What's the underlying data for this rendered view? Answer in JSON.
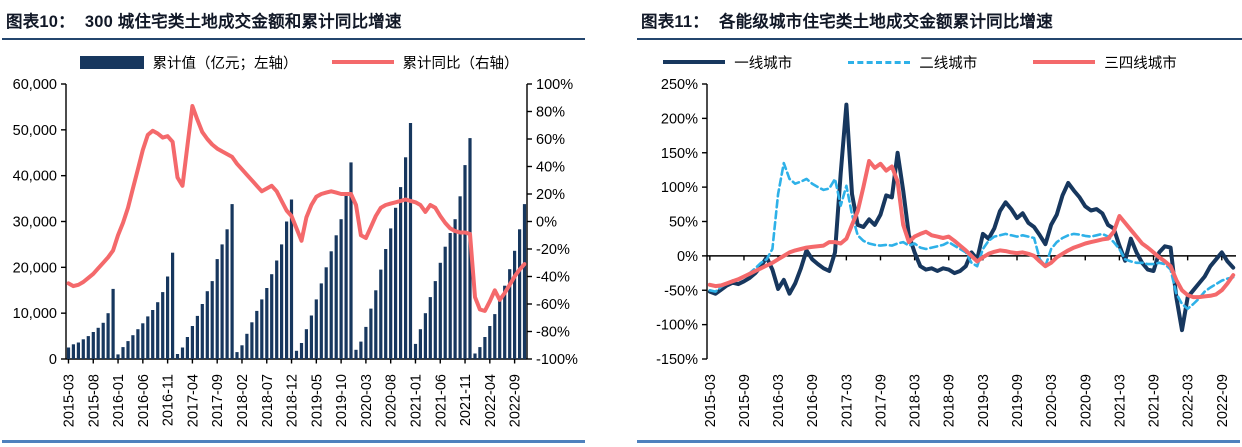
{
  "figures": [
    {
      "title_label": "图表10：",
      "title": "300 城住宅类土地成交金额和累计同比增速"
    },
    {
      "title_label": "图表11：",
      "title": "各能级城市住宅类土地成交金额累计同比增速"
    }
  ],
  "colors": {
    "navy": "#17375e",
    "salmon": "#f4696b",
    "lightblue": "#2eb1e8",
    "rule_blue": "#4f81bd"
  },
  "chart_data": [
    {
      "type": "combo",
      "title": "300 城住宅类土地成交金额和累计同比增速",
      "x_interval": "monthly",
      "x_start": "2015-03",
      "x_tick_step": 5,
      "x_tick_labels": [
        "2015-03",
        "2015-08",
        "2016-01",
        "2016-06",
        "2016-11",
        "2017-04",
        "2017-09",
        "2018-02",
        "2018-07",
        "2018-12",
        "2019-05",
        "2019-10",
        "2020-03",
        "2020-08",
        "2021-01",
        "2021-06",
        "2021-11",
        "2022-04",
        "2022-09"
      ],
      "left_axis": {
        "min": 0,
        "max": 60000,
        "step": 10000,
        "labels": [
          "0",
          "10,000",
          "20,000",
          "30,000",
          "40,000",
          "50,000",
          "60,000"
        ]
      },
      "right_axis": {
        "min": -100,
        "max": 100,
        "step": 20,
        "suffix": "%"
      },
      "legend_position": "top",
      "grid": false,
      "series": [
        {
          "name": "累计值（亿元；左轴）",
          "type": "bar",
          "axis": "left",
          "color": "#17375e",
          "values": [
            2500,
            3200,
            3600,
            4300,
            5000,
            5900,
            6800,
            7900,
            10000,
            15300,
            1000,
            2600,
            3900,
            5200,
            6500,
            7800,
            9300,
            10700,
            12400,
            14600,
            18000,
            23200,
            1100,
            2500,
            4800,
            7200,
            9400,
            12000,
            14800,
            17000,
            21800,
            25000,
            28300,
            33800,
            1500,
            3000,
            5500,
            8000,
            10500,
            13000,
            15500,
            18500,
            21500,
            25000,
            30000,
            34800,
            1800,
            3500,
            6500,
            9500,
            13000,
            16500,
            20000,
            23500,
            27000,
            30500,
            36000,
            42900,
            2000,
            3800,
            7000,
            11000,
            15000,
            19500,
            24000,
            28500,
            33000,
            37500,
            44000,
            51500,
            3300,
            6500,
            10000,
            13500,
            17000,
            21000,
            24500,
            27500,
            30500,
            35500,
            42300,
            48200,
            1200,
            2600,
            4800,
            7200,
            9800,
            12800,
            16000,
            19600,
            23600,
            28300,
            33800
          ]
        },
        {
          "name": "累计同比（右轴）",
          "type": "line",
          "axis": "right",
          "color": "#f4696b",
          "width": 4,
          "values": [
            -45,
            -47,
            -46,
            -44,
            -41,
            -38,
            -34,
            -30,
            -26,
            -21,
            -10,
            -1,
            10,
            24,
            38,
            52,
            63,
            66,
            64,
            61,
            62,
            58,
            32,
            26,
            55,
            84,
            74,
            65,
            60,
            56,
            53,
            51,
            49,
            47,
            42,
            38,
            34,
            30,
            26,
            22,
            24,
            26,
            22,
            15,
            8,
            4,
            -5,
            -14,
            3,
            12,
            18,
            20,
            21,
            22,
            21,
            20,
            20,
            20,
            12,
            -10,
            -12,
            -4,
            4,
            10,
            12,
            13,
            14,
            15,
            16,
            15,
            14,
            12,
            7,
            12,
            10,
            4,
            -1,
            -5,
            -7,
            -8,
            -8,
            -9,
            -55,
            -64,
            -65,
            -58,
            -50,
            -57,
            -52,
            -46,
            -40,
            -35,
            -31
          ]
        }
      ]
    },
    {
      "type": "line",
      "title": "各能级城市住宅类土地成交金额累计同比增速",
      "x_interval": "monthly",
      "x_start": "2015-03",
      "x_tick_step": 6,
      "x_tick_labels": [
        "2015-03",
        "2015-09",
        "2016-03",
        "2016-09",
        "2017-03",
        "2017-09",
        "2018-03",
        "2018-09",
        "2019-03",
        "2019-09",
        "2020-03",
        "2020-09",
        "2021-03",
        "2021-09",
        "2022-03",
        "2022-09"
      ],
      "left_axis": {
        "min": -150,
        "max": 250,
        "step": 50,
        "suffix": "%"
      },
      "x_axis_at_zero": true,
      "legend_position": "top",
      "grid": false,
      "series": [
        {
          "name": "一线城市",
          "type": "line",
          "axis": "left",
          "color": "#17375e",
          "width": 4,
          "values": [
            -52,
            -55,
            -49,
            -43,
            -39,
            -41,
            -37,
            -32,
            -25,
            -15,
            -2,
            -20,
            -48,
            -35,
            -55,
            -40,
            -18,
            8,
            -5,
            -12,
            -18,
            -22,
            5,
            120,
            220,
            90,
            45,
            42,
            53,
            45,
            60,
            88,
            85,
            150,
            95,
            30,
            5,
            -15,
            -20,
            -18,
            -22,
            -18,
            -20,
            -25,
            -22,
            -15,
            5,
            -5,
            32,
            25,
            40,
            65,
            78,
            68,
            55,
            62,
            48,
            42,
            30,
            17,
            45,
            60,
            88,
            106,
            95,
            85,
            72,
            66,
            68,
            62,
            45,
            40,
            15,
            -7,
            25,
            5,
            -10,
            -20,
            -22,
            5,
            14,
            12,
            -60,
            -108,
            -60,
            -50,
            -40,
            -30,
            -15,
            -5,
            5,
            -8,
            -17
          ]
        },
        {
          "name": "二线城市",
          "type": "line",
          "axis": "left",
          "color": "#2eb1e8",
          "width": 2.6,
          "dash": "7,4",
          "values": [
            -50,
            -52,
            -45,
            -40,
            -36,
            -35,
            -30,
            -25,
            -18,
            -10,
            -5,
            10,
            90,
            135,
            112,
            105,
            108,
            112,
            105,
            100,
            96,
            98,
            112,
            73,
            102,
            60,
            30,
            22,
            18,
            16,
            15,
            16,
            15,
            18,
            20,
            15,
            18,
            12,
            10,
            12,
            14,
            16,
            20,
            15,
            10,
            5,
            -10,
            -15,
            10,
            22,
            28,
            30,
            32,
            30,
            28,
            30,
            28,
            26,
            -5,
            -15,
            10,
            20,
            26,
            30,
            32,
            31,
            29,
            28,
            30,
            32,
            28,
            20,
            10,
            -5,
            -8,
            -10,
            -10,
            -12,
            -12,
            -10,
            -12,
            -20,
            -55,
            -70,
            -77,
            -70,
            -62,
            -52,
            -46,
            -41,
            -36,
            -33,
            -31
          ]
        },
        {
          "name": "三四线城市",
          "type": "line",
          "axis": "left",
          "color": "#f4696b",
          "width": 4,
          "values": [
            -42,
            -44,
            -43,
            -40,
            -37,
            -34,
            -30,
            -26,
            -22,
            -18,
            -14,
            -10,
            -5,
            0,
            5,
            8,
            10,
            12,
            13,
            14,
            15,
            20,
            20,
            18,
            25,
            45,
            65,
            100,
            138,
            128,
            134,
            124,
            130,
            108,
            45,
            20,
            28,
            32,
            35,
            30,
            28,
            26,
            28,
            22,
            15,
            8,
            0,
            -8,
            -2,
            3,
            6,
            8,
            7,
            5,
            4,
            5,
            3,
            0,
            -8,
            -15,
            -10,
            -2,
            3,
            8,
            12,
            15,
            18,
            20,
            22,
            24,
            25,
            35,
            58,
            48,
            38,
            28,
            18,
            12,
            5,
            -2,
            -8,
            -15,
            -35,
            -50,
            -57,
            -60,
            -60,
            -59,
            -58,
            -56,
            -50,
            -40,
            -28
          ]
        }
      ]
    }
  ]
}
